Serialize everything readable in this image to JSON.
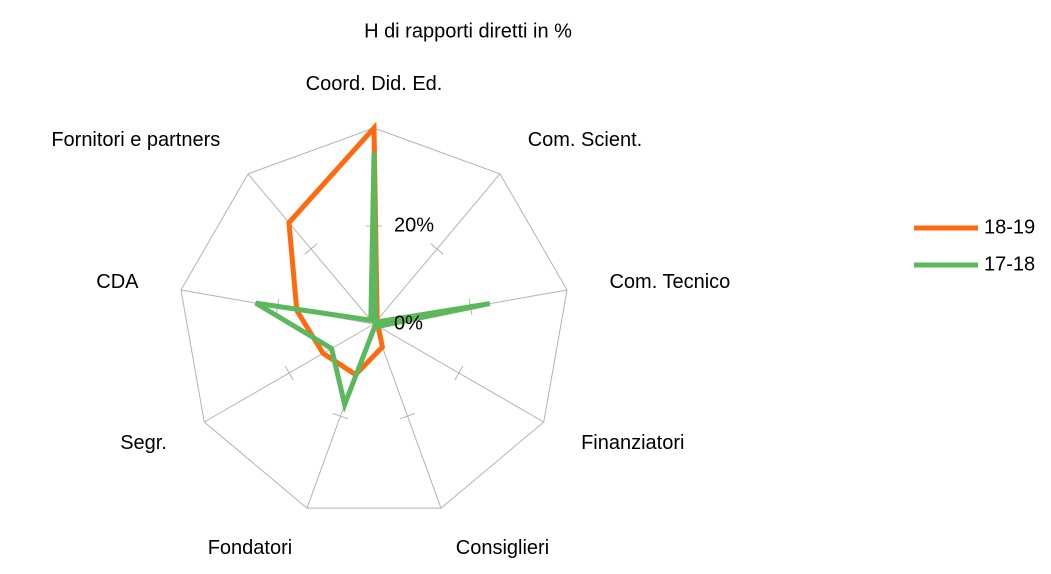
{
  "chart_data": {
    "type": "radar",
    "title": "H di rapporti diretti in %",
    "categories": [
      "Coord. Did. Ed.",
      "Com. Scient.",
      "Com. Tecnico",
      "Finanziatori",
      "Consiglieri",
      "Fondatori",
      "Segr.",
      "CDA",
      "Fornitori e partners"
    ],
    "series": [
      {
        "name": "18-19",
        "color": "#ff6a0e",
        "values": [
          40,
          1,
          1,
          1,
          5,
          11,
          12,
          16,
          27
        ]
      },
      {
        "name": "17-18",
        "color": "#5cb85c",
        "values": [
          35,
          0.5,
          24,
          1,
          0.5,
          17.5,
          10,
          24.5,
          1
        ]
      }
    ],
    "ylim": [
      0,
      40
    ],
    "yticks": [
      {
        "value": 0,
        "label": "0%"
      },
      {
        "value": 20,
        "label": "20%"
      }
    ],
    "legend": "right"
  }
}
